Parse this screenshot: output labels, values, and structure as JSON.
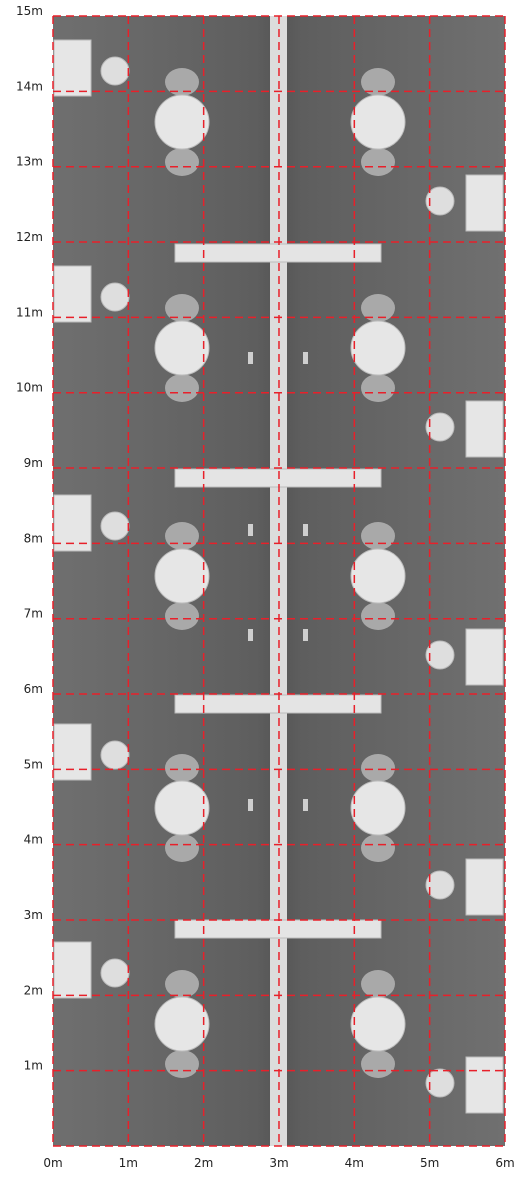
{
  "x_axis": {
    "labels": [
      "0m",
      "1m",
      "2m",
      "3m",
      "4m",
      "5m",
      "6m"
    ]
  },
  "y_axis": {
    "labels": [
      "1m",
      "2m",
      "3m",
      "4m",
      "5m",
      "6m",
      "7m",
      "8m",
      "9m",
      "10m",
      "11m",
      "12m",
      "13m",
      "14m",
      "15m"
    ]
  }
}
